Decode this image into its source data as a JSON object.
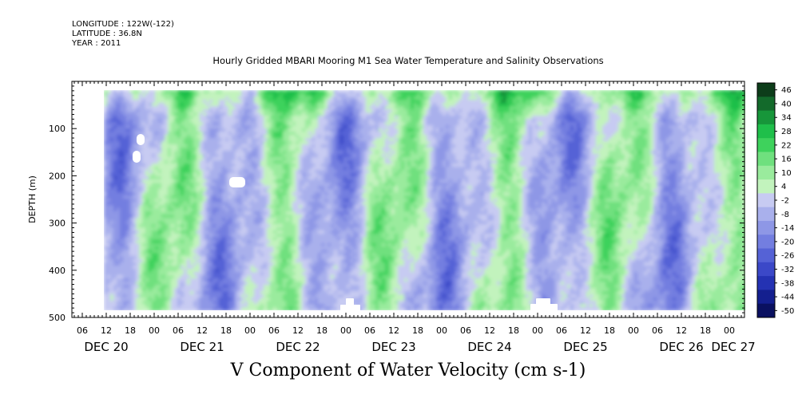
{
  "header": {
    "longitude": "LONGITUDE : 122W(-122)",
    "latitude": "LATITUDE : 36.8N",
    "year": "YEAR : 2011"
  },
  "chart_data": {
    "type": "heatmap",
    "title": "Hourly Gridded MBARI Mooring M1 Sea Water Temperature and Salinity Observations",
    "xlabel": "V Component of Water Velocity (cm s-1)",
    "ylabel": "DEPTH (m)",
    "y_axis": {
      "range": [
        500,
        0
      ],
      "ticks": [
        100,
        200,
        300,
        400,
        500
      ],
      "tick_labels": [
        "100",
        "200",
        "300",
        "400",
        "500"
      ]
    },
    "x_axis": {
      "hour_tick_labels": [
        "06",
        "12",
        "18",
        "00",
        "06",
        "12",
        "18",
        "00",
        "06",
        "12",
        "18",
        "00",
        "06",
        "12",
        "18",
        "00",
        "06",
        "12",
        "18",
        "00",
        "06",
        "12",
        "18",
        "00",
        "06",
        "12",
        "18",
        "00"
      ],
      "day_labels": [
        "DEC 20",
        "DEC 21",
        "DEC 22",
        "DEC 23",
        "DEC 24",
        "DEC 25",
        "DEC 26",
        "DEC 27"
      ]
    },
    "colorbar": {
      "labels": [
        "46",
        "40",
        "34",
        "28",
        "22",
        "16",
        "10",
        "4",
        "-2",
        "-8",
        "-14",
        "-20",
        "-26",
        "-32",
        "-38",
        "-44",
        "-50"
      ],
      "colors": [
        "#0d3d1a",
        "#136a2b",
        "#17963a",
        "#1fbf4a",
        "#3ed25c",
        "#6fe07e",
        "#9aeb9d",
        "#c2f3bd",
        "#c7cbf2",
        "#a9b0ec",
        "#8e97e6",
        "#737ee0",
        "#5562d6",
        "#3b48c8",
        "#2432b3",
        "#141f8f",
        "#0a1060"
      ]
    },
    "data_extent": {
      "depth_top": 20,
      "depth_bottom": 490,
      "time_start": "DEC 20 12:00",
      "time_end": "DEC 26 22:00"
    }
  }
}
